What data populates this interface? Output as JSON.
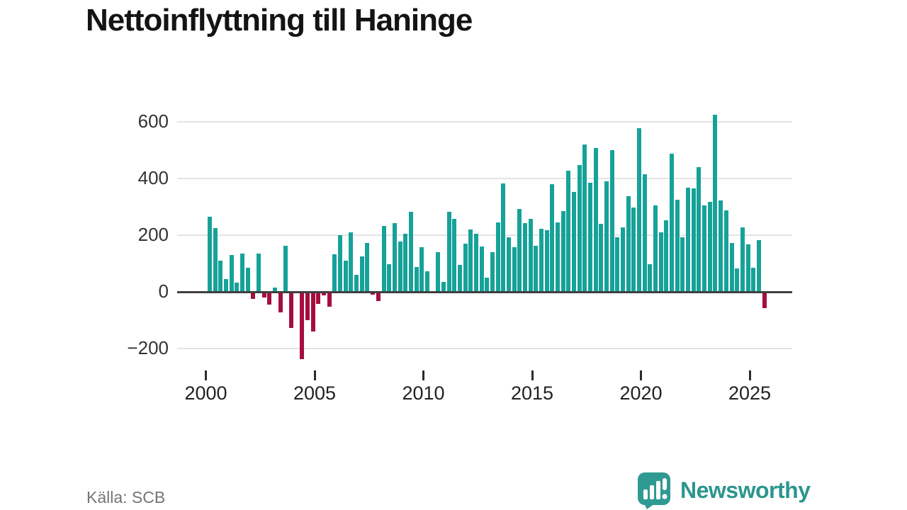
{
  "title": "Nettoinflyttning till Haninge",
  "source_label": "Källa: SCB",
  "brand": {
    "name": "Newsworthy",
    "icon": "speech-bubble-bar-chart-icon",
    "color": "#2b968e",
    "icon_color": "#2f9a92"
  },
  "colors": {
    "positive_bar": "#16a299",
    "negative_bar": "#a50e3f",
    "gridline": "#e4e4e4",
    "axis": "#3f3f3f"
  },
  "chart_data": {
    "type": "bar",
    "title": "Nettoinflyttning till Haninge",
    "xlabel": "",
    "ylabel": "",
    "frequency": "quarterly",
    "start_period": "2000-Q1",
    "end_period": "2025-Q3",
    "ylim": [
      -260,
      660
    ],
    "grid": true,
    "yticks": [
      {
        "label": "600",
        "value": 600
      },
      {
        "label": "400",
        "value": 400
      },
      {
        "label": "200",
        "value": 200
      },
      {
        "label": "0",
        "value": 0
      },
      {
        "label": "−200",
        "value": -200
      }
    ],
    "xticks": [
      "2000",
      "2005",
      "2010",
      "2015",
      "2020",
      "2025"
    ],
    "values": [
      265,
      225,
      110,
      46,
      130,
      32,
      136,
      84,
      -25,
      135,
      -19,
      -46,
      14,
      -73,
      162,
      -128,
      0,
      -238,
      -100,
      -140,
      -42,
      -13,
      -52,
      132,
      200,
      111,
      211,
      61,
      126,
      172,
      -10,
      -33,
      233,
      98,
      242,
      178,
      205,
      283,
      88,
      157,
      72,
      0,
      140,
      35,
      283,
      257,
      96,
      169,
      219,
      204,
      159,
      51,
      140,
      246,
      383,
      192,
      157,
      293,
      242,
      258,
      163,
      223,
      217,
      379,
      246,
      285,
      428,
      353,
      448,
      519,
      386,
      507,
      240,
      389,
      500,
      193,
      227,
      338,
      298,
      578,
      415,
      98,
      305,
      210,
      253,
      488,
      325,
      193,
      367,
      365,
      439,
      304,
      317,
      625,
      322,
      288,
      173,
      83,
      227,
      167,
      86,
      183,
      -58
    ]
  }
}
